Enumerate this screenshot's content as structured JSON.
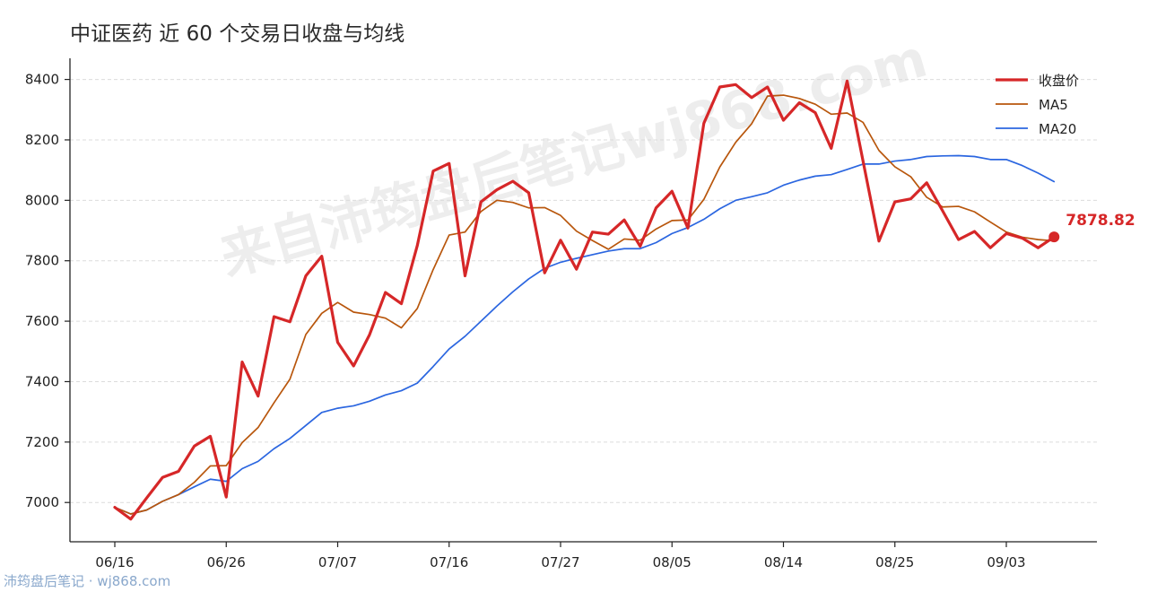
{
  "chart_data": {
    "type": "line",
    "title": "中证医药 近 60 个交易日收盘与均线",
    "xlabel": "",
    "ylabel": "",
    "x_tick_labels": [
      "06/16",
      "06/26",
      "07/07",
      "07/16",
      "07/27",
      "08/05",
      "08/14",
      "08/25",
      "09/03"
    ],
    "x_tick_indices": [
      0,
      7,
      14,
      21,
      28,
      35,
      42,
      49,
      56
    ],
    "y_ticks": [
      7000,
      7200,
      7400,
      7600,
      7800,
      8000,
      8200,
      8400
    ],
    "ylim": [
      6870,
      8470
    ],
    "grid": "horizontal-dashed",
    "legend_position": "top-right",
    "last_value_label": "7878.82",
    "series": [
      {
        "name": "收盘价",
        "color": "#d62728",
        "values": [
          6984,
          6945,
          7015,
          7083,
          7103,
          7187,
          7219,
          7018,
          7465,
          7352,
          7615,
          7598,
          7750,
          7815,
          7530,
          7452,
          7555,
          7695,
          7658,
          7850,
          8097,
          8122,
          7750,
          7995,
          8035,
          8063,
          8025,
          7760,
          7868,
          7772,
          7895,
          7888,
          7935,
          7848,
          7975,
          8030,
          7908,
          8255,
          8375,
          8383,
          8340,
          8375,
          8265,
          8323,
          8290,
          8172,
          8395,
          8130,
          7865,
          7995,
          8005,
          8058,
          7965,
          7870,
          7897,
          7843,
          7890,
          7875,
          7843,
          7878.82
        ]
      },
      {
        "name": "MA5",
        "color": "#b8560c",
        "values": [
          6984,
          6962,
          6975,
          7004,
          7026,
          7067,
          7121,
          7122,
          7198,
          7248,
          7330,
          7408,
          7556,
          7626,
          7662,
          7630,
          7622,
          7610,
          7578,
          7642,
          7771,
          7885,
          7895,
          7963,
          8000,
          7993,
          7975,
          7976,
          7950,
          7898,
          7867,
          7838,
          7872,
          7868,
          7905,
          7933,
          7935,
          8003,
          8110,
          8192,
          8253,
          8345,
          8348,
          8337,
          8318,
          8285,
          8289,
          8258,
          8165,
          8111,
          8078,
          8010,
          7978,
          7980,
          7962,
          7928,
          7895,
          7878,
          7870,
          7866
        ]
      },
      {
        "name": "MA20",
        "color": "#2b66e0",
        "values": [
          6984,
          6962,
          6975,
          7004,
          7026,
          7052,
          7077,
          7070,
          7112,
          7136,
          7178,
          7212,
          7255,
          7298,
          7312,
          7320,
          7335,
          7356,
          7370,
          7395,
          7450,
          7508,
          7550,
          7600,
          7650,
          7697,
          7740,
          7775,
          7795,
          7808,
          7820,
          7832,
          7840,
          7840,
          7860,
          7890,
          7910,
          7937,
          7972,
          8000,
          8012,
          8025,
          8050,
          8067,
          8080,
          8085,
          8102,
          8120,
          8120,
          8130,
          8135,
          8145,
          8147,
          8148,
          8145,
          8135,
          8135,
          8115,
          8090,
          8062
        ]
      }
    ]
  },
  "watermark": {
    "diagonal": "来自沛筠盘后笔记wj868.com",
    "footer": "沛筠盘后笔记 · wj868.com"
  }
}
